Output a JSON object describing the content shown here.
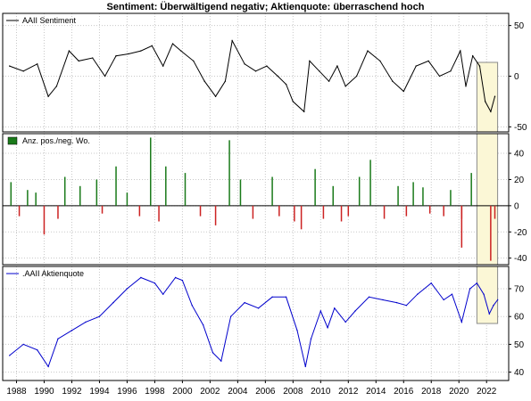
{
  "title": "Sentiment: Überwältigend negativ; Aktienquote: überraschend hoch",
  "colors": {
    "sentiment": "#000000",
    "positive": "#1a7a1a",
    "negative": "#cc2222",
    "quote": "#0000cc",
    "highlight_fill": "#fbf7d6",
    "highlight_stroke": "#8a8a8a"
  },
  "x_axis": {
    "range": [
      1987.0,
      2023.6
    ],
    "ticks": [
      1988,
      1990,
      1992,
      1994,
      1996,
      1998,
      2000,
      2002,
      2004,
      2006,
      2008,
      2010,
      2012,
      2014,
      2016,
      2018,
      2020,
      2022
    ],
    "tick_labels": [
      "1988",
      "1990",
      "1992",
      "1994",
      "1996",
      "1998",
      "2000",
      "2002",
      "2004",
      "2006",
      "2008",
      "2010",
      "2012",
      "2014",
      "2016",
      "2018",
      "2020",
      "2022"
    ]
  },
  "highlight": {
    "x_range": [
      2021.3,
      2022.8
    ]
  },
  "chart_data": [
    {
      "type": "line",
      "legend": "AAII Sentiment",
      "ylim": [
        -55,
        62
      ],
      "yticks": [
        50,
        0,
        -50
      ],
      "ytick_labels": [
        "50",
        "0",
        "-50"
      ],
      "series": [
        {
          "name": "AAII Sentiment",
          "color": "#000000",
          "x": [
            1987.5,
            1988.5,
            1989.5,
            1990.3,
            1990.9,
            1991.8,
            1992.5,
            1993.5,
            1994.4,
            1995.2,
            1996.1,
            1997.0,
            1997.8,
            1998.6,
            1999.3,
            1999.9,
            2000.8,
            2001.6,
            2002.4,
            2003.1,
            2003.6,
            2004.5,
            2005.3,
            2006.1,
            2006.9,
            2007.5,
            2008.0,
            2008.8,
            2009.2,
            2009.9,
            2010.6,
            2011.2,
            2011.8,
            2012.6,
            2013.4,
            2014.3,
            2015.2,
            2016.0,
            2016.9,
            2017.8,
            2018.6,
            2019.4,
            2020.1,
            2020.5,
            2021.0,
            2021.5,
            2021.9,
            2022.3,
            2022.6
          ],
          "y": [
            10,
            5,
            12,
            -20,
            -10,
            25,
            15,
            18,
            0,
            20,
            22,
            25,
            30,
            10,
            32,
            25,
            15,
            -5,
            -20,
            -5,
            35,
            12,
            5,
            10,
            0,
            -8,
            -25,
            -35,
            15,
            5,
            -5,
            10,
            -10,
            0,
            25,
            15,
            -5,
            -15,
            10,
            15,
            0,
            5,
            25,
            -10,
            20,
            10,
            -25,
            -35,
            -20
          ]
        }
      ]
    },
    {
      "type": "bar",
      "legend": "Anz. pos./neg. Wo.",
      "ylim": [
        -45,
        55
      ],
      "yticks": [
        40,
        20,
        0,
        -20,
        -40
      ],
      "ytick_labels": [
        "40",
        "20",
        "0",
        "-20",
        "-40"
      ],
      "series": [
        {
          "name": "positiv",
          "color": "#1a7a1a",
          "x": [
            1987.6,
            1988.8,
            1989.4,
            1991.5,
            1992.6,
            1993.8,
            1995.2,
            1996.0,
            1997.7,
            1998.8,
            2000.2,
            2003.4,
            2004.2,
            2006.5,
            2009.6,
            2010.9,
            2012.8,
            2013.6,
            2015.6,
            2016.7,
            2017.4,
            2019.4,
            2020.9
          ],
          "y": [
            18,
            12,
            10,
            22,
            15,
            20,
            30,
            10,
            52,
            30,
            25,
            50,
            20,
            22,
            28,
            15,
            22,
            35,
            15,
            18,
            14,
            12,
            25
          ]
        },
        {
          "name": "negativ",
          "color": "#cc2222",
          "x": [
            1988.2,
            1990.0,
            1991.0,
            1994.2,
            1996.9,
            1998.3,
            2001.3,
            2002.4,
            2005.1,
            2007.0,
            2008.1,
            2008.6,
            2010.2,
            2011.5,
            2012.0,
            2014.6,
            2016.2,
            2017.9,
            2018.9,
            2020.2,
            2020.2,
            2022.3,
            2022.6
          ],
          "y": [
            -8,
            -22,
            -10,
            -6,
            -8,
            -12,
            -8,
            -15,
            -10,
            -8,
            -12,
            -18,
            -10,
            -12,
            -8,
            -10,
            -8,
            -6,
            -8,
            -32,
            -10,
            -42,
            -10
          ]
        }
      ]
    },
    {
      "type": "line",
      "legend": ".AAII Aktienquote",
      "ylim": [
        37,
        78
      ],
      "yticks": [
        70,
        60,
        50,
        40
      ],
      "ytick_labels": [
        "70",
        "60",
        "50",
        "40"
      ],
      "series": [
        {
          "name": ".AAII Aktienquote",
          "color": "#0000cc",
          "x": [
            1987.5,
            1988.5,
            1989.5,
            1990.3,
            1991.0,
            1992.0,
            1993.0,
            1994.0,
            1995.0,
            1996.0,
            1997.0,
            1998.0,
            1998.6,
            1999.5,
            2000.0,
            2000.7,
            2001.5,
            2002.2,
            2002.8,
            2003.5,
            2004.5,
            2005.5,
            2006.5,
            2007.5,
            2008.3,
            2008.9,
            2009.3,
            2010.0,
            2010.5,
            2011.0,
            2011.8,
            2012.5,
            2013.5,
            2014.5,
            2015.5,
            2016.2,
            2017.0,
            2018.0,
            2018.9,
            2019.5,
            2020.2,
            2020.8,
            2021.3,
            2021.8,
            2022.2,
            2022.5,
            2022.8
          ],
          "y": [
            46,
            50,
            48,
            42,
            52,
            55,
            58,
            60,
            65,
            70,
            74,
            72,
            68,
            74,
            73,
            64,
            57,
            47,
            44,
            60,
            65,
            63,
            67,
            67,
            55,
            42,
            52,
            62,
            56,
            63,
            58,
            62,
            67,
            66,
            65,
            64,
            68,
            72,
            66,
            68,
            58,
            70,
            72,
            68,
            61,
            64,
            66
          ]
        }
      ]
    }
  ]
}
